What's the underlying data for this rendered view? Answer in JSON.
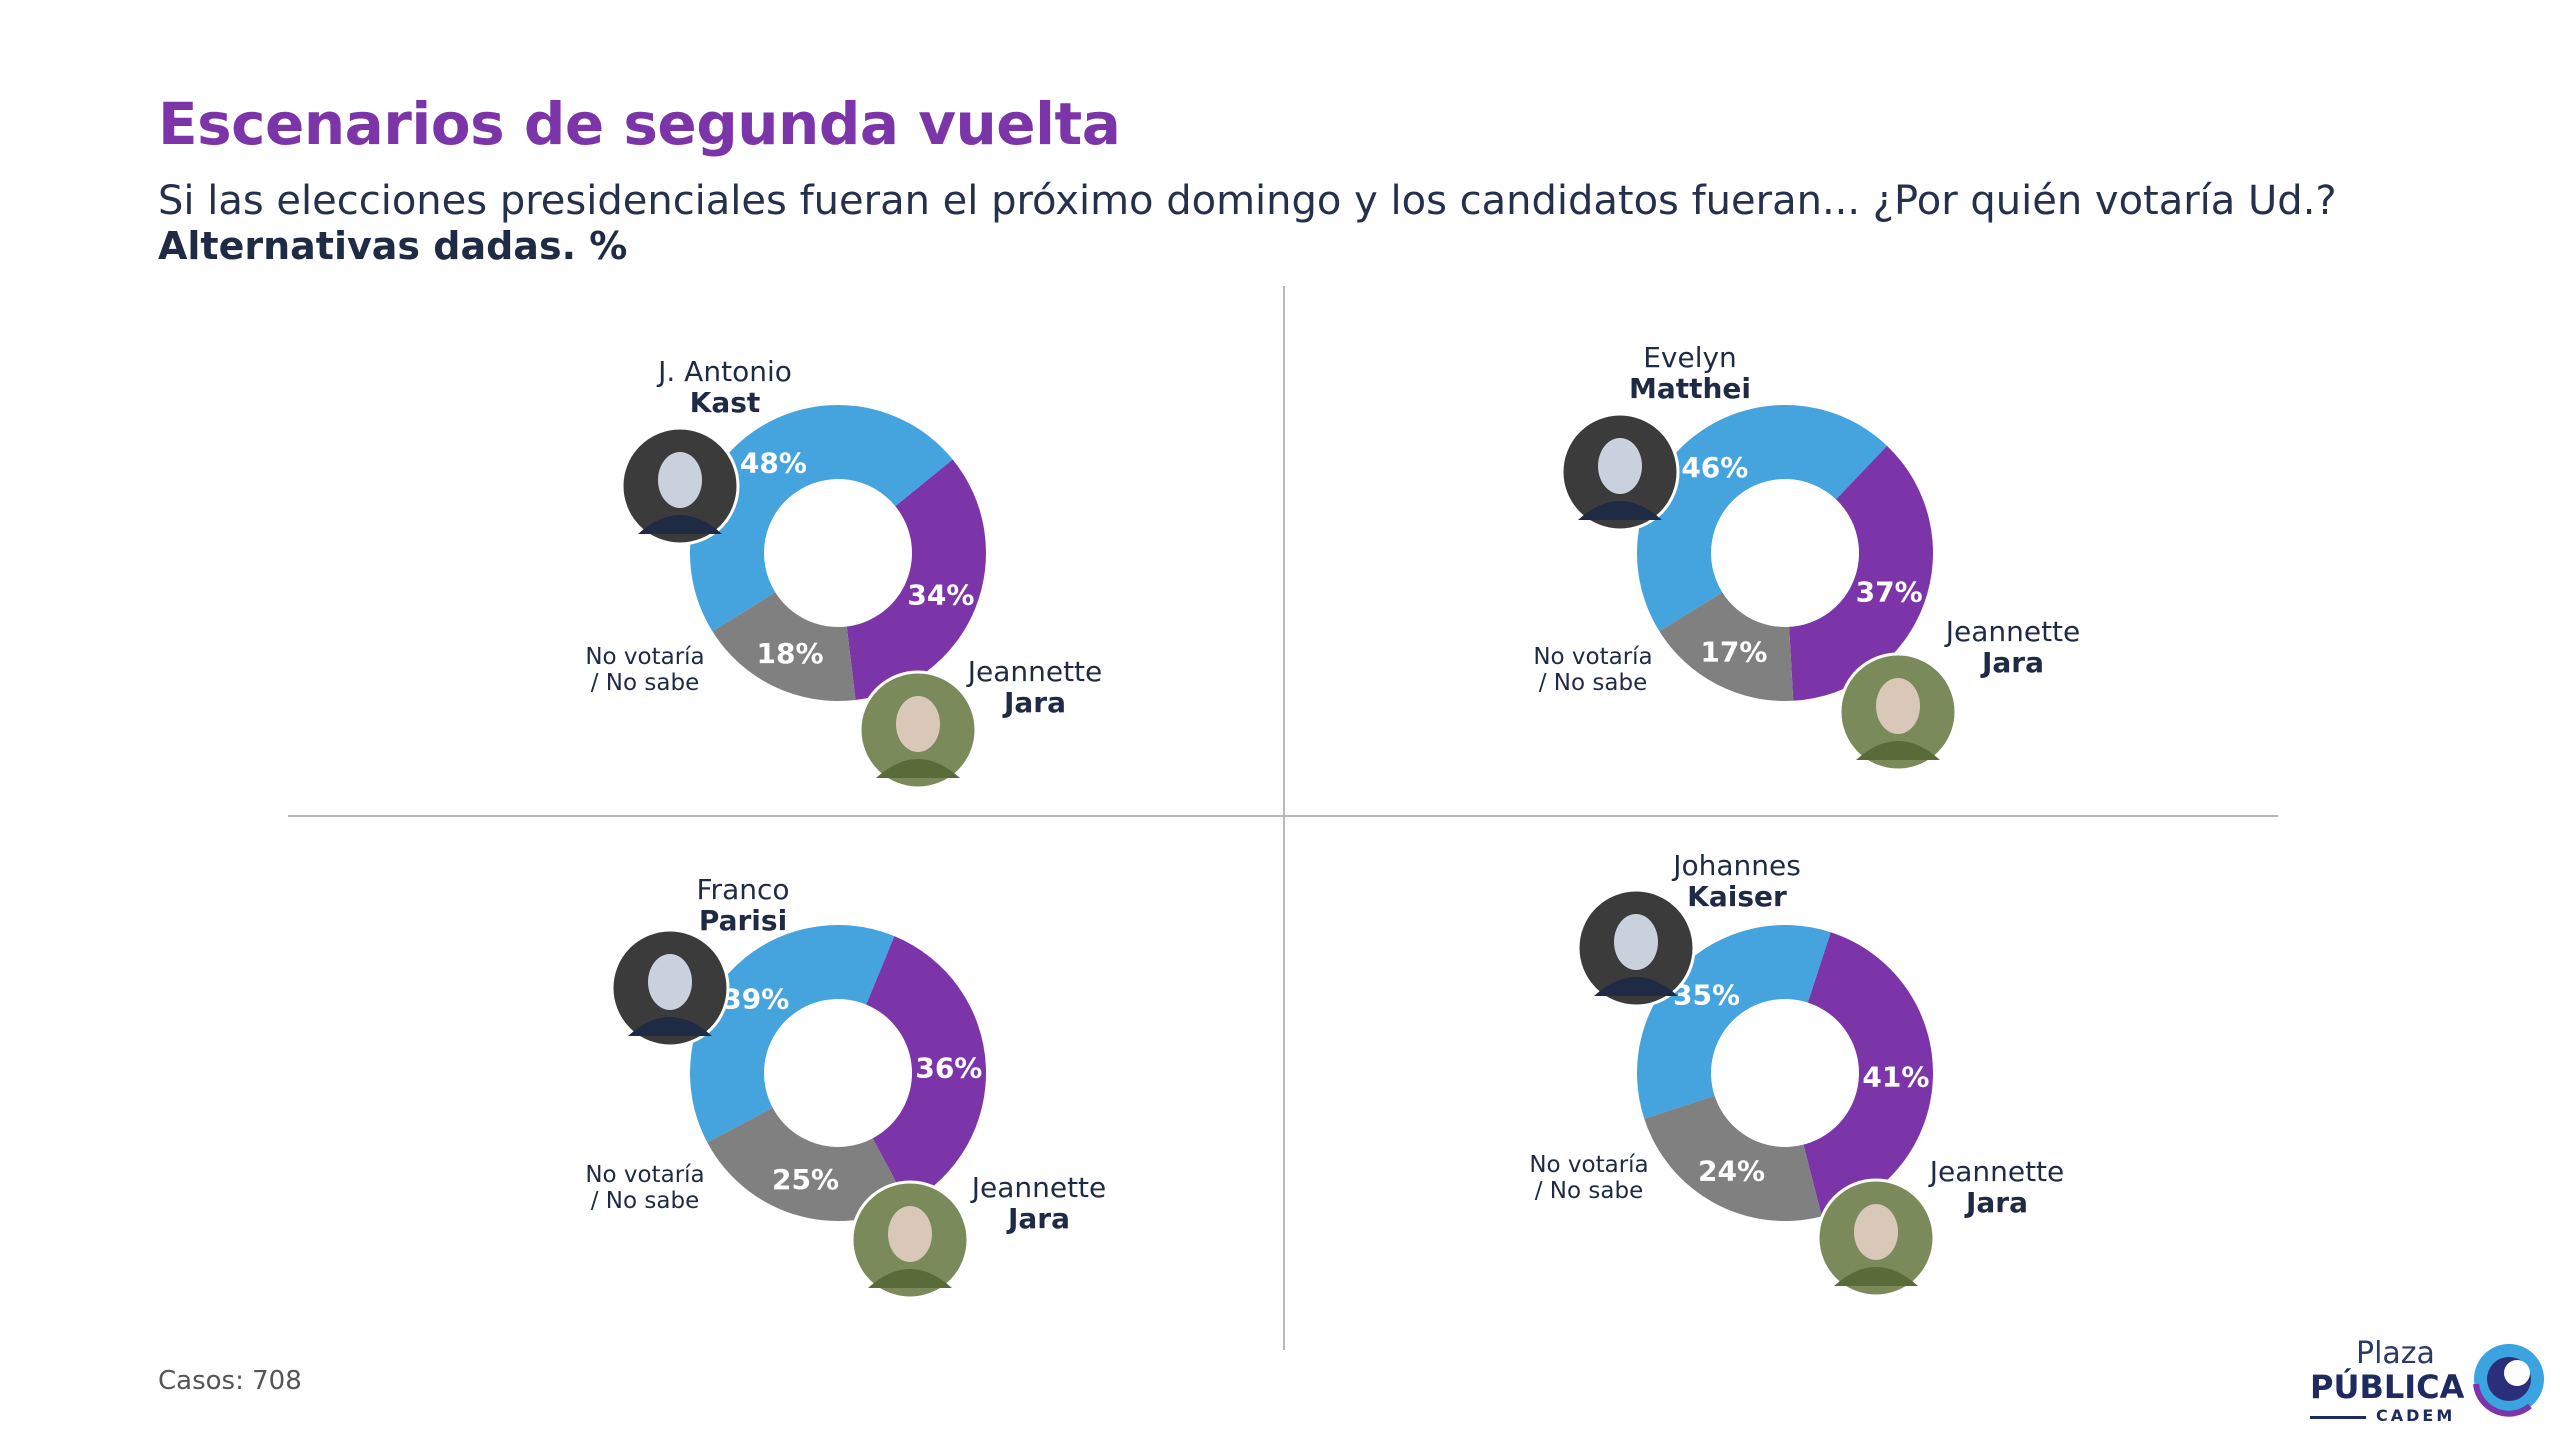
{
  "header": {
    "title": "Escenarios de segunda vuelta",
    "subtitle": "Si las elecciones presidenciales fueran el próximo domingo y los candidatos fueran... ¿Por quién votaría Ud.?",
    "subtitle_bold": "Alternativas dadas. %"
  },
  "colors": {
    "blue": "#45a3dd",
    "purple": "#7b35a8",
    "gray": "#808080",
    "title": "#7b35a8"
  },
  "chart_data": [
    {
      "type": "pie",
      "donut": true,
      "slices": [
        {
          "name": "Kast",
          "value": 48,
          "label": "48%"
        },
        {
          "name": "Jara",
          "value": 34,
          "label": "34%"
        },
        {
          "name": "No votaría / No sabe",
          "value": 18,
          "label": "18%"
        }
      ],
      "candidate": {
        "first": "J. Antonio",
        "last": "Kast"
      },
      "opponent": {
        "first": "Jeannette",
        "last": "Jara"
      },
      "nv": {
        "line1": "No votaría",
        "line2": "/ No sabe"
      }
    },
    {
      "type": "pie",
      "donut": true,
      "slices": [
        {
          "name": "Matthei",
          "value": 46,
          "label": "46%"
        },
        {
          "name": "Jara",
          "value": 37,
          "label": "37%"
        },
        {
          "name": "No votaría / No sabe",
          "value": 17,
          "label": "17%"
        }
      ],
      "candidate": {
        "first": "Evelyn",
        "last": "Matthei"
      },
      "opponent": {
        "first": "Jeannette",
        "last": "Jara"
      },
      "nv": {
        "line1": "No votaría",
        "line2": "/ No sabe"
      }
    },
    {
      "type": "pie",
      "donut": true,
      "slices": [
        {
          "name": "Parisi",
          "value": 39,
          "label": "39%"
        },
        {
          "name": "Jara",
          "value": 36,
          "label": "36%"
        },
        {
          "name": "No votaría / No sabe",
          "value": 25,
          "label": "25%"
        }
      ],
      "candidate": {
        "first": "Franco",
        "last": "Parisi"
      },
      "opponent": {
        "first": "Jeannette",
        "last": "Jara"
      },
      "nv": {
        "line1": "No votaría",
        "line2": "/ No sabe"
      }
    },
    {
      "type": "pie",
      "donut": true,
      "slices": [
        {
          "name": "Kaiser",
          "value": 35,
          "label": "35%"
        },
        {
          "name": "Jara",
          "value": 41,
          "label": "41%"
        },
        {
          "name": "No votaría / No sabe",
          "value": 24,
          "label": "24%"
        }
      ],
      "candidate": {
        "first": "Johannes",
        "last": "Kaiser"
      },
      "opponent": {
        "first": "Jeannette",
        "last": "Jara"
      },
      "nv": {
        "line1": "No votaría",
        "line2": "/ No sabe"
      }
    }
  ],
  "footer": {
    "casos": "Casos: 708",
    "logo_plaza": "Plaza",
    "logo_publica": "PÚBLICA",
    "logo_cadem": "CADEM"
  }
}
